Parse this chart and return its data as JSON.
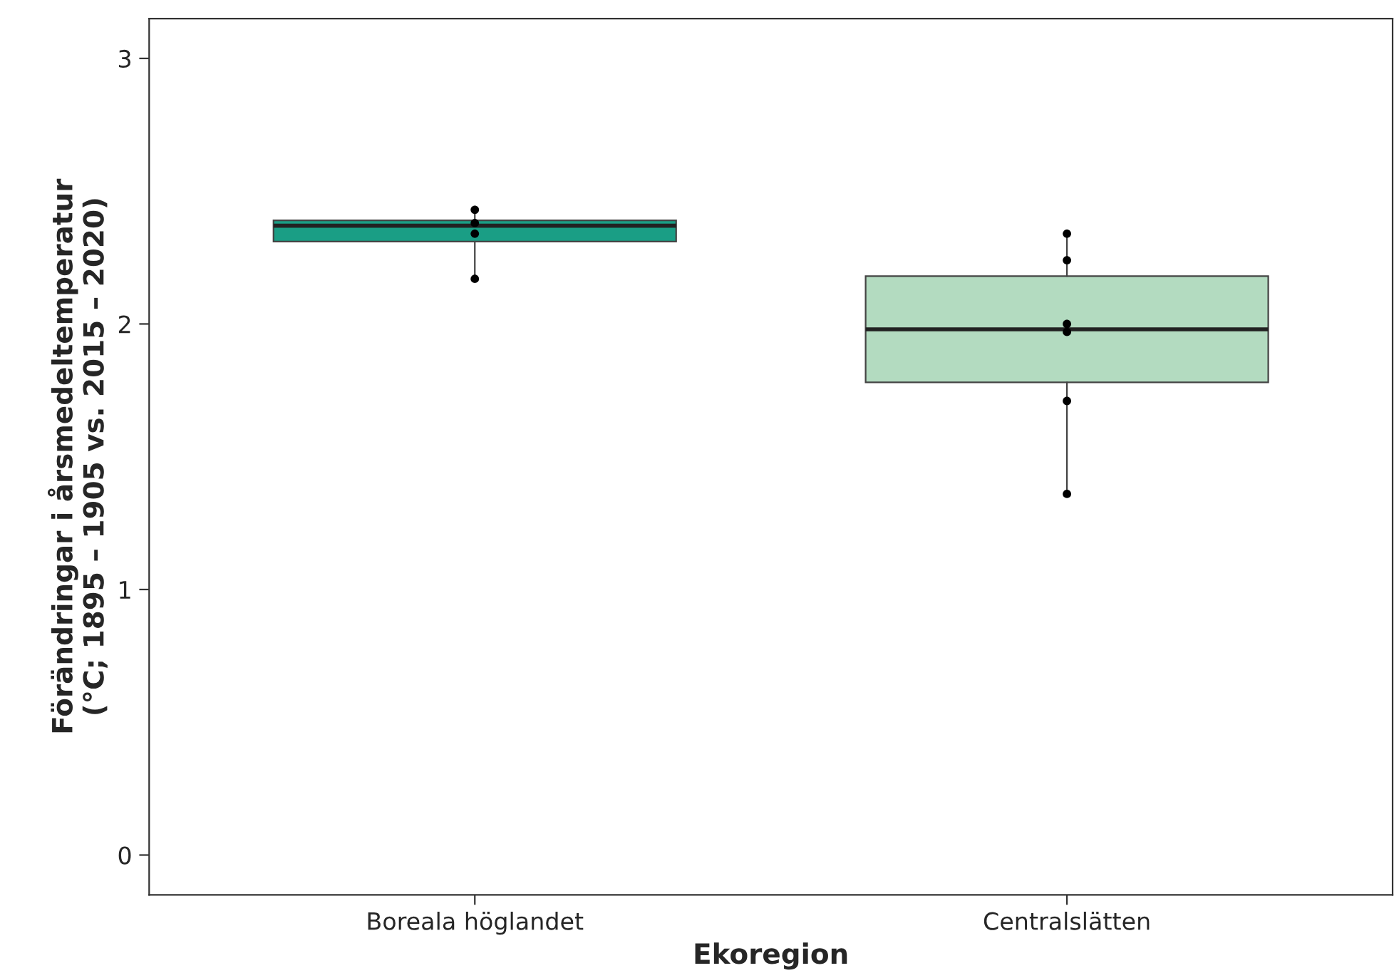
{
  "chart_data": {
    "type": "box",
    "xlabel": "Ekoregion",
    "ylabel": "Förändringar i årsmedeltemperatur\n(°C; 1895 – 1905 vs. 2015 – 2020)",
    "categories": [
      "Boreala höglandet",
      "Centralslätten"
    ],
    "boxes": [
      {
        "low": 2.18,
        "q1": 2.31,
        "median": 2.37,
        "q3": 2.39,
        "high": 2.43
      },
      {
        "low": 1.36,
        "q1": 1.78,
        "median": 1.98,
        "q3": 2.18,
        "high": 2.33
      }
    ],
    "colors": [
      "#1a9e85",
      "#b3dbc0"
    ],
    "ylim": [
      -0.15,
      3.15
    ],
    "yticks": [
      0,
      1,
      2,
      3
    ],
    "grid": false,
    "legend": false,
    "series": [
      {
        "type": "scatter",
        "color": "#000000",
        "x": [
          "Boreala höglandet",
          "Boreala höglandet",
          "Boreala höglandet",
          "Boreala höglandet"
        ],
        "values": [
          2.43,
          2.38,
          2.34,
          2.17
        ]
      },
      {
        "type": "scatter",
        "color": "#000000",
        "x": [
          "Centralslätten",
          "Centralslätten",
          "Centralslätten",
          "Centralslätten",
          "Centralslätten",
          "Centralslätten"
        ],
        "values": [
          2.0,
          2.24,
          2.34,
          1.97,
          1.71,
          1.36
        ]
      }
    ]
  }
}
